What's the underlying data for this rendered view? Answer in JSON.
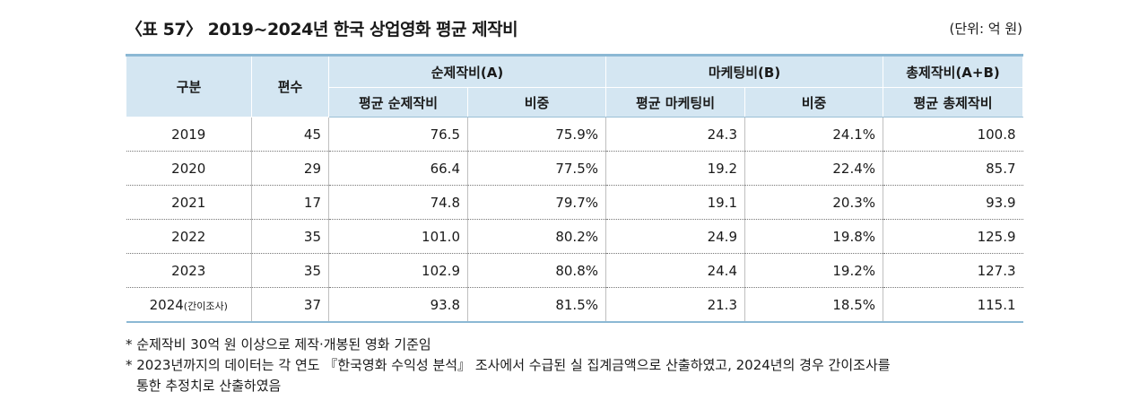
{
  "title": "〈표 57〉 2019~2024년 한국 상업영화 평균 제작비",
  "unit": "(단위: 억 원)",
  "headers": {
    "category": "구분",
    "count": "편수",
    "net_group": "순제작비(A)",
    "marketing_group": "마케팅비(B)",
    "total_group": "총제작비(A+B)",
    "avg_net": "평균 순제작비",
    "net_ratio": "비중",
    "avg_marketing": "평균 마케팅비",
    "marketing_ratio": "비중",
    "avg_total": "평균 총제작비"
  },
  "rows": [
    {
      "year": "2019",
      "year_note": "",
      "count": "45",
      "avg_net": "76.5",
      "net_ratio": "75.9%",
      "avg_marketing": "24.3",
      "marketing_ratio": "24.1%",
      "avg_total": "100.8"
    },
    {
      "year": "2020",
      "year_note": "",
      "count": "29",
      "avg_net": "66.4",
      "net_ratio": "77.5%",
      "avg_marketing": "19.2",
      "marketing_ratio": "22.4%",
      "avg_total": "85.7"
    },
    {
      "year": "2021",
      "year_note": "",
      "count": "17",
      "avg_net": "74.8",
      "net_ratio": "79.7%",
      "avg_marketing": "19.1",
      "marketing_ratio": "20.3%",
      "avg_total": "93.9"
    },
    {
      "year": "2022",
      "year_note": "",
      "count": "35",
      "avg_net": "101.0",
      "net_ratio": "80.2%",
      "avg_marketing": "24.9",
      "marketing_ratio": "19.8%",
      "avg_total": "125.9"
    },
    {
      "year": "2023",
      "year_note": "",
      "count": "35",
      "avg_net": "102.9",
      "net_ratio": "80.8%",
      "avg_marketing": "24.4",
      "marketing_ratio": "19.2%",
      "avg_total": "127.3"
    },
    {
      "year": "2024",
      "year_note": "(간이조사)",
      "count": "37",
      "avg_net": "93.8",
      "net_ratio": "81.5%",
      "avg_marketing": "21.3",
      "marketing_ratio": "18.5%",
      "avg_total": "115.1"
    }
  ],
  "notes": {
    "note1": "* 순제작비 30억 원 이상으로 제작·개봉된 영화 기준임",
    "note2": "* 2023년까지의 데이터는 각 연도 『한국영화 수익성 분석』 조사에서 수급된 실 집계금액으로 산출하였고, 2024년의 경우 간이조사를",
    "note2_cont": "통한 추정치로 산출하였음"
  }
}
